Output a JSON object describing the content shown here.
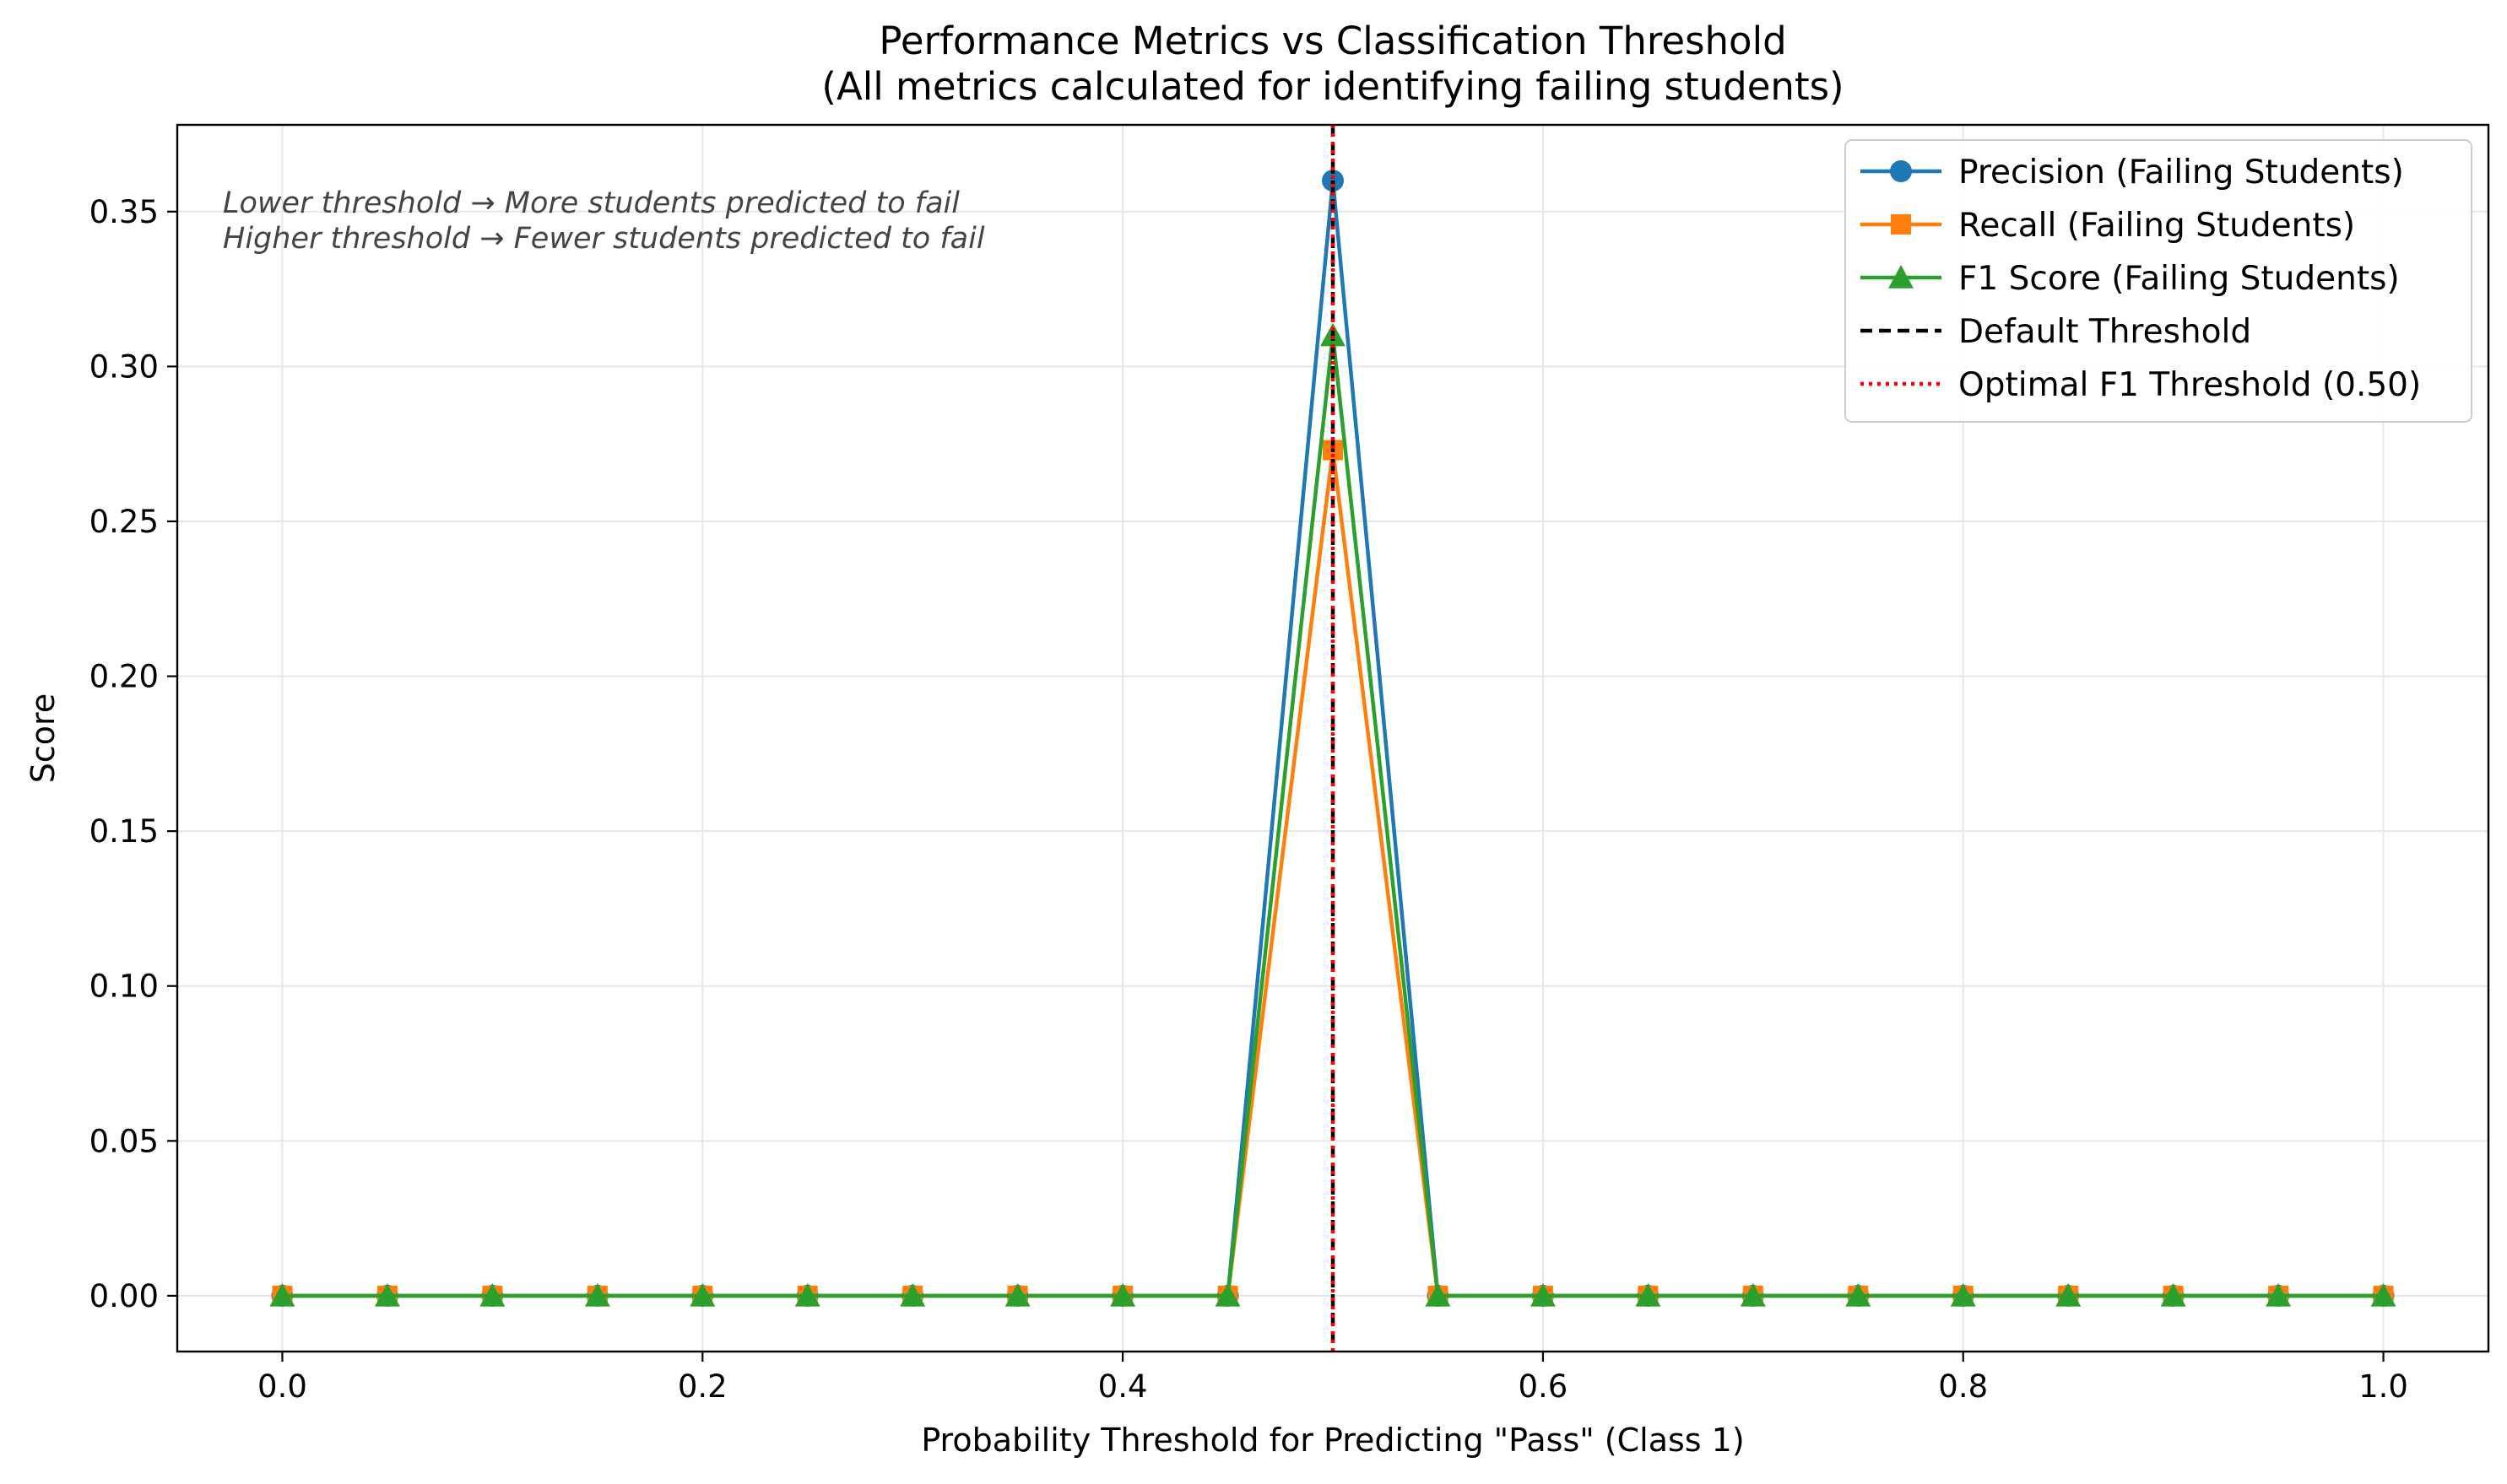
{
  "chart_data": {
    "type": "line",
    "title": "Performance Metrics vs Classification Threshold",
    "subtitle": "(All metrics calculated for identifying failing students)",
    "xlabel": "Probability Threshold for Predicting \"Pass\" (Class 1)",
    "ylabel": "Score",
    "xlim": [
      -0.05,
      1.05
    ],
    "ylim": [
      -0.018,
      0.378
    ],
    "x_ticks": [
      0.0,
      0.2,
      0.4,
      0.6,
      0.8,
      1.0
    ],
    "x_tick_labels": [
      "0.0",
      "0.2",
      "0.4",
      "0.6",
      "0.8",
      "1.0"
    ],
    "y_ticks": [
      0.0,
      0.05,
      0.1,
      0.15,
      0.2,
      0.25,
      0.3,
      0.35
    ],
    "y_tick_labels": [
      "0.00",
      "0.05",
      "0.10",
      "0.15",
      "0.20",
      "0.25",
      "0.30",
      "0.35"
    ],
    "grid": true,
    "legend_position": "top-right",
    "x": [
      0.0,
      0.05,
      0.1,
      0.15,
      0.2,
      0.25,
      0.3,
      0.35,
      0.4,
      0.45,
      0.5,
      0.55,
      0.6,
      0.65,
      0.7,
      0.75,
      0.8,
      0.85,
      0.9,
      0.95,
      1.0
    ],
    "series": [
      {
        "name": "Precision (Failing Students)",
        "color": "#1f77b4",
        "marker": "circle",
        "values": [
          0,
          0,
          0,
          0,
          0,
          0,
          0,
          0,
          0,
          0,
          0.36,
          0,
          0,
          0,
          0,
          0,
          0,
          0,
          0,
          0,
          0
        ]
      },
      {
        "name": "Recall (Failing Students)",
        "color": "#ff7f0e",
        "marker": "square",
        "values": [
          0,
          0,
          0,
          0,
          0,
          0,
          0,
          0,
          0,
          0,
          0.273,
          0,
          0,
          0,
          0,
          0,
          0,
          0,
          0,
          0,
          0
        ]
      },
      {
        "name": "F1 Score (Failing Students)",
        "color": "#2ca02c",
        "marker": "triangle",
        "values": [
          0,
          0,
          0,
          0,
          0,
          0,
          0,
          0,
          0,
          0,
          0.31,
          0,
          0,
          0,
          0,
          0,
          0,
          0,
          0,
          0,
          0
        ]
      }
    ],
    "vlines": [
      {
        "name": "Default Threshold",
        "x": 0.5,
        "color": "#000000",
        "style": "dashed"
      },
      {
        "name": "Optimal F1 Threshold (0.50)",
        "x": 0.5,
        "color": "#ff0000",
        "style": "dotted"
      }
    ],
    "annotations": [
      "Lower threshold → More students predicted to fail",
      "Higher threshold → Fewer students predicted to fail"
    ]
  }
}
